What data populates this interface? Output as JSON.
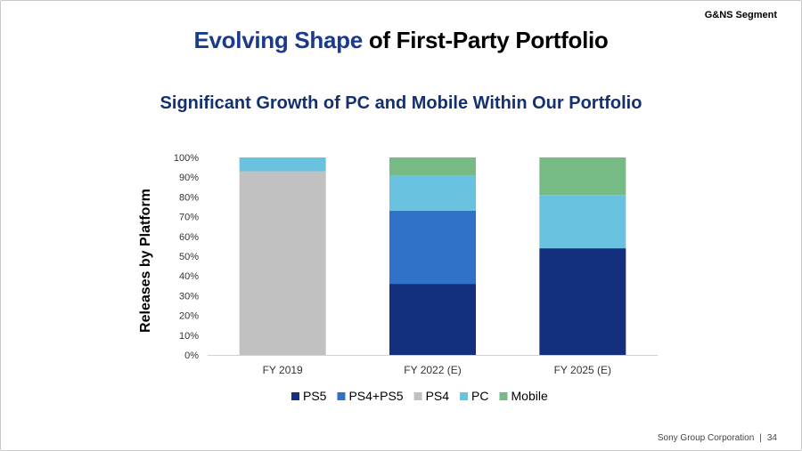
{
  "header": {
    "segment_label": "G&NS Segment",
    "title_accent": "Evolving Shape",
    "title_rest": " of First-Party Portfolio",
    "subtitle": "Significant Growth of PC and Mobile Within Our Portfolio"
  },
  "footer": {
    "company": "Sony Group Corporation",
    "separator": "|",
    "page_number": "34"
  },
  "chart_data": {
    "type": "bar",
    "stacked": true,
    "title": "Significant Growth of PC and Mobile Within Our Portfolio",
    "xlabel": "",
    "ylabel": "Releases by Platform",
    "ylim": [
      0,
      100
    ],
    "yticks": [
      0,
      10,
      20,
      30,
      40,
      50,
      60,
      70,
      80,
      90,
      100
    ],
    "ytick_labels": [
      "0%",
      "10%",
      "20%",
      "30%",
      "40%",
      "50%",
      "60%",
      "70%",
      "80%",
      "90%",
      "100%"
    ],
    "categories": [
      "FY 2019",
      "FY 2022 (E)",
      "FY 2025 (E)"
    ],
    "series": [
      {
        "name": "PS5",
        "color": "#132f7d",
        "values": [
          0,
          36,
          54
        ]
      },
      {
        "name": "PS4+PS5",
        "color": "#2f72c8",
        "values": [
          0,
          37,
          0
        ]
      },
      {
        "name": "PS4",
        "color": "#c1c1c1",
        "values": [
          93,
          0,
          0
        ]
      },
      {
        "name": "PC",
        "color": "#68c2e0",
        "values": [
          7,
          18,
          27
        ]
      },
      {
        "name": "Mobile",
        "color": "#76bb86",
        "values": [
          0,
          9,
          19
        ]
      }
    ],
    "grid": false,
    "legend_position": "bottom"
  }
}
